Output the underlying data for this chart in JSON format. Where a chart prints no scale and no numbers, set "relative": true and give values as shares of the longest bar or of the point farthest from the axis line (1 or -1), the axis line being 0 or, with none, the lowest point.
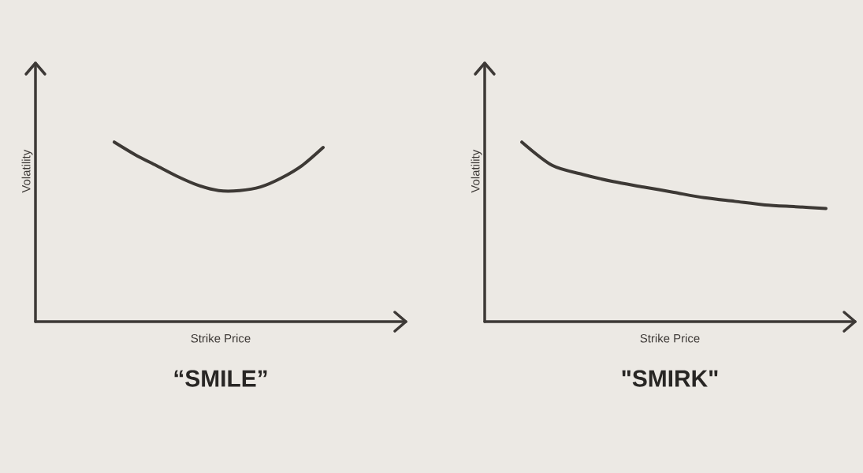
{
  "chart_data": [
    {
      "type": "line",
      "title": "“SMILE”",
      "xlabel": "Strike Price",
      "ylabel": "Volatility",
      "categories": [
        null,
        null,
        null,
        null,
        null,
        null,
        null,
        null,
        null,
        null,
        null
      ],
      "values": [
        1,
        0.93,
        0.87,
        0.81,
        0.76,
        0.73,
        0.73,
        0.75,
        0.8,
        0.87,
        0.97
      ],
      "color": "#3d3935",
      "relative": true,
      "marker": "none"
    },
    {
      "type": "line",
      "title": "\"SMIRK\"",
      "xlabel": "Strike Price",
      "ylabel": "Volatility",
      "categories": [
        null,
        null,
        null,
        null,
        null,
        null,
        null,
        null,
        null,
        null,
        null
      ],
      "values": [
        1,
        0.87,
        0.82,
        0.78,
        0.75,
        0.72,
        0.69,
        0.67,
        0.65,
        0.64,
        0.63
      ],
      "color": "#3d3935",
      "relative": true,
      "marker": "none"
    }
  ]
}
